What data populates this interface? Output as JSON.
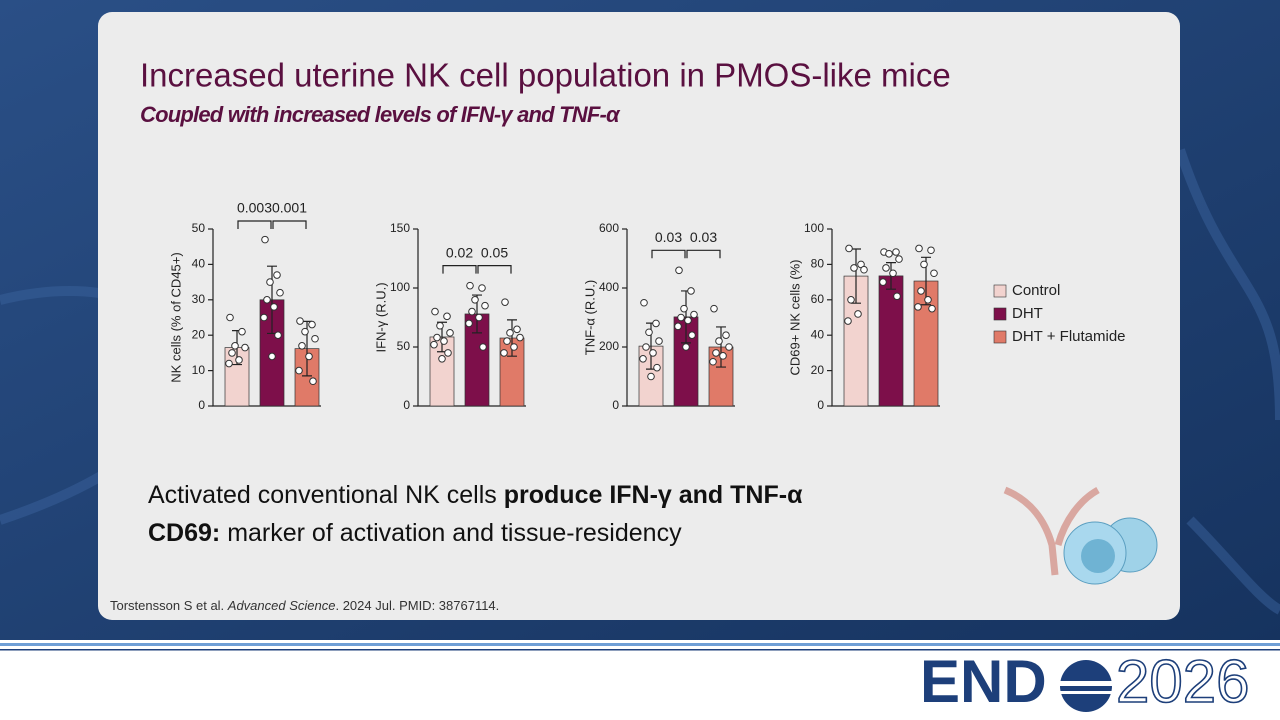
{
  "slide": {
    "title": "Increased uterine NK cell population in PMOS-like mice",
    "subtitle": "Coupled with increased levels of IFN-γ and TNF-α",
    "bullets": [
      {
        "text": "Activated conventional NK cells ",
        "bold": "produce IFN-γ and TNF-α"
      },
      {
        "bold": "CD69:",
        "text": " marker of activation and tissue-residency"
      }
    ],
    "citation": {
      "authors": "Torstensson S et al. ",
      "journal": "Advanced Science",
      "rest": ". 2024 Jul. PMID: 38767114."
    },
    "logo": {
      "left": "END",
      "right": "2026"
    }
  },
  "legend": [
    {
      "name": "Control",
      "color": "#f2d3cf"
    },
    {
      "name": "DHT",
      "color": "#7d0f4a"
    },
    {
      "name": "DHT + Flutamide",
      "color": "#e07a68"
    }
  ],
  "chart_data": [
    {
      "type": "bar",
      "y_label": "NK cells (% of CD45+)",
      "ylim": [
        0,
        50
      ],
      "yticks": [
        0,
        10,
        20,
        30,
        40,
        50
      ],
      "values": [
        16.5,
        30,
        16.2
      ],
      "errors": [
        4.8,
        9.5,
        7.7
      ],
      "points": [
        [
          25,
          21,
          17,
          16.5,
          15,
          13,
          12
        ],
        [
          47,
          37,
          35,
          32,
          30,
          28,
          25,
          20,
          14
        ],
        [
          24,
          23,
          21,
          19,
          17,
          14,
          10,
          7
        ]
      ],
      "annotations": [
        {
          "label": "0.003",
          "from": 0,
          "to": 1
        },
        {
          "label": "0.001",
          "from": 1,
          "to": 2
        }
      ]
    },
    {
      "type": "bar",
      "y_label": "IFN-γ (R.U.)",
      "ylim": [
        0,
        150
      ],
      "yticks": [
        0,
        50,
        100,
        150
      ],
      "values": [
        58.5,
        78,
        57.6
      ],
      "errors": [
        12.5,
        16,
        15.4
      ],
      "points": [
        [
          80,
          76,
          68,
          62,
          58,
          55,
          52,
          45,
          40
        ],
        [
          102,
          100,
          90,
          85,
          80,
          75,
          70,
          50
        ],
        [
          88,
          65,
          62,
          58,
          55,
          50,
          45
        ]
      ],
      "annotations": [
        {
          "label": "0.02",
          "from": 0,
          "to": 1
        },
        {
          "label": "0.05",
          "from": 1,
          "to": 2
        }
      ]
    },
    {
      "type": "bar",
      "y_label": "TNF-α (R.U.)",
      "ylim": [
        0,
        600
      ],
      "yticks": [
        0,
        200,
        400,
        600
      ],
      "values": [
        203,
        302,
        200
      ],
      "errors": [
        78,
        88,
        68
      ],
      "points": [
        [
          350,
          280,
          250,
          220,
          200,
          180,
          160,
          130,
          100
        ],
        [
          460,
          390,
          330,
          310,
          300,
          290,
          270,
          240,
          200
        ],
        [
          330,
          240,
          220,
          200,
          180,
          170,
          150
        ]
      ],
      "annotations": [
        {
          "label": "0.03",
          "from": 0,
          "to": 1
        },
        {
          "label": "0.03",
          "from": 1,
          "to": 2
        }
      ]
    },
    {
      "type": "bar",
      "y_label": "CD69+ NK cells (%)",
      "ylim": [
        0,
        100
      ],
      "yticks": [
        0,
        20,
        40,
        60,
        80,
        100
      ],
      "values": [
        73.4,
        73.5,
        70.6
      ],
      "errors": [
        15.3,
        7.5,
        13.4
      ],
      "points": [
        [
          89,
          80,
          78,
          77,
          60,
          52,
          48
        ],
        [
          87,
          87,
          86,
          83,
          78,
          75,
          70,
          62
        ],
        [
          89,
          88,
          80,
          75,
          65,
          60,
          56,
          55
        ]
      ],
      "annotations": []
    }
  ]
}
